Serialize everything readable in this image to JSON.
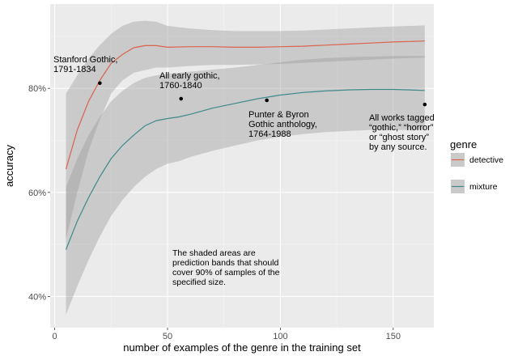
{
  "chart_data": {
    "type": "line",
    "xlabel": "number of examples of the genre in the training set",
    "ylabel": "accuracy",
    "xlim": [
      -2,
      168
    ],
    "ylim": [
      0.34,
      0.962
    ],
    "x_ticks": [
      0,
      50,
      100,
      150
    ],
    "y_ticks": [
      0.4,
      0.6,
      0.8
    ],
    "y_tick_labels": [
      "40%",
      "60%",
      "80%"
    ],
    "grid": true,
    "legend": {
      "title": "genre",
      "position": "right"
    },
    "series": [
      {
        "name": "detective",
        "color": "#D9634C",
        "x": [
          5,
          10,
          15,
          20,
          25,
          30,
          35,
          40,
          45,
          50,
          60,
          70,
          80,
          90,
          100,
          110,
          120,
          130,
          140,
          150,
          164
        ],
        "y": [
          0.645,
          0.72,
          0.775,
          0.815,
          0.848,
          0.865,
          0.878,
          0.882,
          0.882,
          0.879,
          0.88,
          0.88,
          0.879,
          0.879,
          0.88,
          0.881,
          0.883,
          0.885,
          0.887,
          0.889,
          0.891
        ],
        "lower": [
          0.51,
          0.6,
          0.68,
          0.74,
          0.79,
          0.815,
          0.83,
          0.835,
          0.84,
          0.84,
          0.843,
          0.845,
          0.845,
          0.846,
          0.847,
          0.849,
          0.851,
          0.853,
          0.855,
          0.857,
          0.859
        ],
        "upper": [
          0.79,
          0.825,
          0.857,
          0.883,
          0.905,
          0.92,
          0.928,
          0.93,
          0.928,
          0.92,
          0.915,
          0.912,
          0.91,
          0.91,
          0.91,
          0.911,
          0.913,
          0.915,
          0.917,
          0.919,
          0.921
        ]
      },
      {
        "name": "mixture",
        "color": "#3E8A8A",
        "x": [
          5,
          10,
          15,
          20,
          25,
          30,
          35,
          40,
          45,
          50,
          55,
          60,
          70,
          80,
          90,
          100,
          110,
          120,
          130,
          140,
          150,
          164
        ],
        "y": [
          0.49,
          0.545,
          0.59,
          0.63,
          0.665,
          0.69,
          0.71,
          0.728,
          0.738,
          0.742,
          0.745,
          0.75,
          0.762,
          0.771,
          0.78,
          0.787,
          0.792,
          0.795,
          0.797,
          0.798,
          0.798,
          0.796
        ],
        "lower": [
          0.365,
          0.42,
          0.47,
          0.515,
          0.555,
          0.585,
          0.61,
          0.63,
          0.645,
          0.655,
          0.66,
          0.668,
          0.68,
          0.69,
          0.7,
          0.707,
          0.712,
          0.716,
          0.718,
          0.72,
          0.72,
          0.72
        ],
        "upper": [
          0.61,
          0.665,
          0.71,
          0.745,
          0.775,
          0.795,
          0.81,
          0.82,
          0.825,
          0.828,
          0.83,
          0.832,
          0.836,
          0.84,
          0.845,
          0.85,
          0.855,
          0.858,
          0.86,
          0.861,
          0.862,
          0.862
        ]
      }
    ],
    "points": [
      {
        "x": 20,
        "y": 0.81,
        "label": [
          "Stanford Gothic,",
          "1791-1834"
        ]
      },
      {
        "x": 56,
        "y": 0.78,
        "label": [
          "All early gothic,",
          "1760-1840"
        ]
      },
      {
        "x": 94,
        "y": 0.777,
        "label": [
          "Punter & Byron",
          "Gothic anthology,",
          "1764-1988"
        ]
      },
      {
        "x": 164,
        "y": 0.769,
        "label": [
          "All works tagged",
          "“gothic,” “horror”",
          "or “ghost story”",
          "by any source."
        ]
      }
    ],
    "note": [
      "The shaded areas are",
      "prediction bands that should",
      "cover 90% of samples of the",
      "specified size."
    ]
  }
}
